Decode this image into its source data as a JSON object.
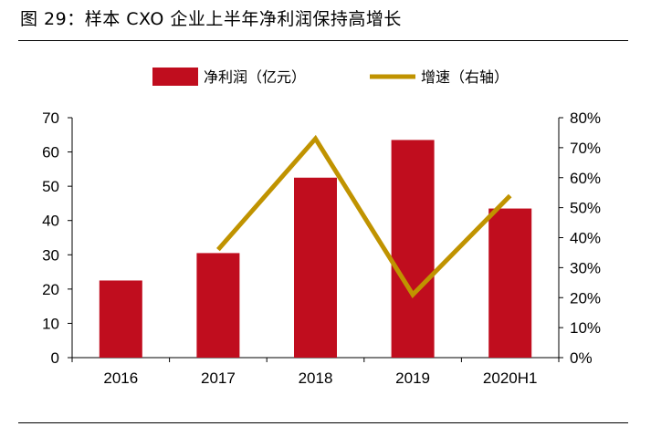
{
  "figure": {
    "title": "图 29：样本 CXO 企业上半年净利润保持高增长"
  },
  "chart_data": {
    "type": "bar+line",
    "title": "图 29：样本 CXO 企业上半年净利润保持高增长",
    "categories": [
      "2016",
      "2017",
      "2018",
      "2019",
      "2020H1"
    ],
    "series": [
      {
        "name": "净利润（亿元）",
        "type": "bar",
        "axis": "left",
        "color": "#C00D1E",
        "values": [
          22.5,
          30.5,
          52.5,
          63.5,
          43.5
        ]
      },
      {
        "name": "增速（右轴）",
        "type": "line",
        "axis": "right",
        "color": "#C09300",
        "values": [
          null,
          36,
          73,
          21,
          54
        ]
      }
    ],
    "y_left": {
      "min": 0,
      "max": 70,
      "ticks": [
        "0",
        "10",
        "20",
        "30",
        "40",
        "50",
        "60",
        "70"
      ]
    },
    "y_right": {
      "min": 0,
      "max": 80,
      "ticks": [
        "0%",
        "10%",
        "20%",
        "30%",
        "40%",
        "50%",
        "60%",
        "70%",
        "80%"
      ]
    },
    "legend": [
      "净利润（亿元）",
      "增速（右轴）"
    ],
    "legend_position": "top-center",
    "grid": false
  }
}
